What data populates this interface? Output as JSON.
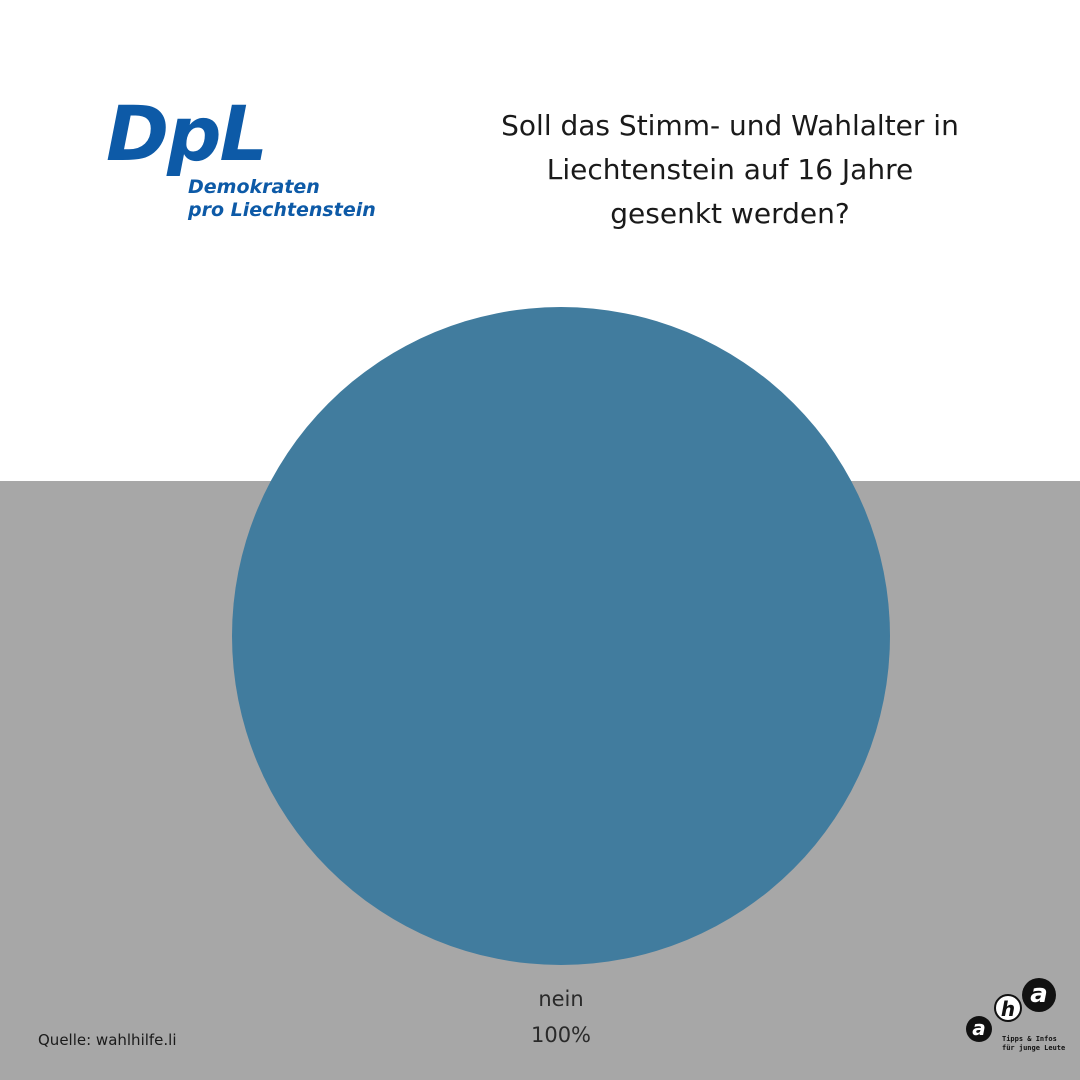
{
  "logo": {
    "big": "DpL",
    "line1": "Demokraten",
    "line2": "pro Liechtenstein",
    "color": "#0d5aa7"
  },
  "question": {
    "line1": "Soll das Stimm- und Wahlalter in",
    "line2": "Liechtenstein auf 16 Jahre",
    "line3": "gesenkt werden?"
  },
  "chart_data": {
    "type": "pie",
    "title": "",
    "slices": [
      {
        "label": "nein",
        "value": 100,
        "display": "100%",
        "color": "#417c9e"
      }
    ],
    "legend": "none"
  },
  "source": "Quelle: wahlhilfe.li",
  "aha_logo": {
    "letters": [
      "a",
      "h",
      "a"
    ],
    "tagline1": "Tipps & Infos",
    "tagline2": "für junge Leute"
  },
  "colors": {
    "top_background": "#ffffff",
    "bottom_background": "#a7a7a7"
  }
}
